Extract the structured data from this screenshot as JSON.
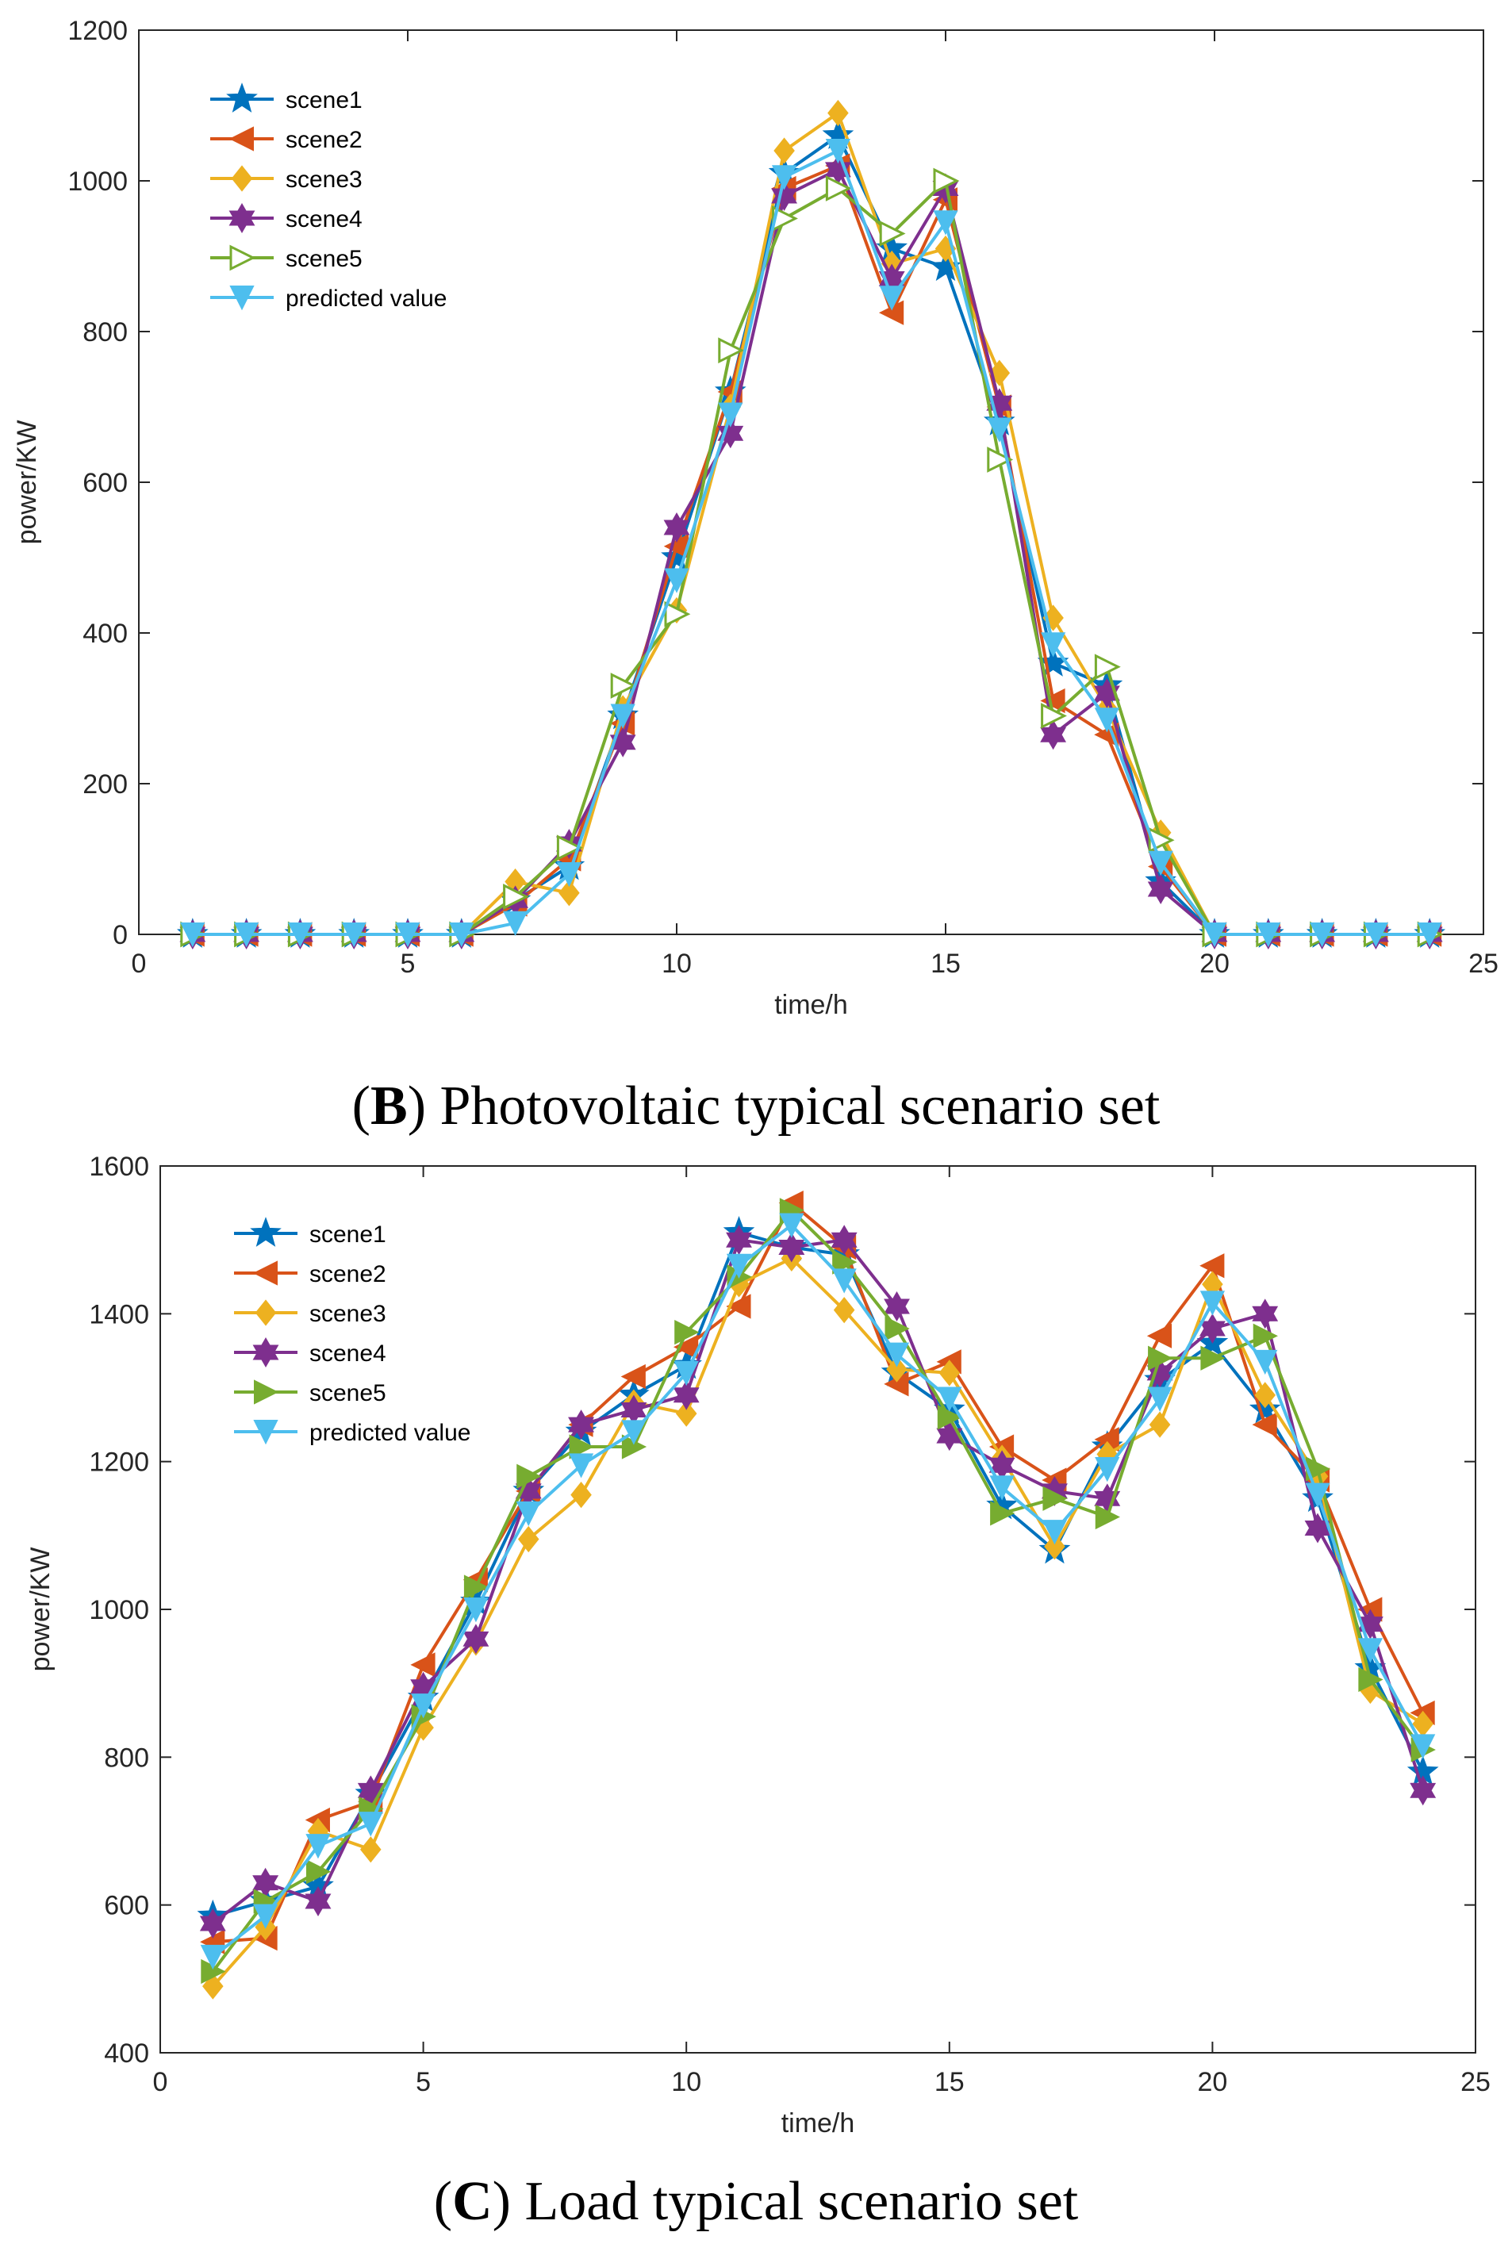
{
  "figure": {
    "panels": [
      {
        "letter": "B",
        "caption_text": ") Photovoltaic typical scenario set",
        "open_paren": "("
      },
      {
        "letter": "C",
        "caption_text": ") Load typical scenario set",
        "open_paren": "("
      }
    ]
  },
  "chart_data": [
    {
      "type": "line",
      "title": "",
      "xlabel": "time/h",
      "ylabel": "power/KW",
      "xlim": [
        0,
        25
      ],
      "ylim": [
        0,
        1200
      ],
      "xticks": [
        0,
        5,
        10,
        15,
        20,
        25
      ],
      "yticks": [
        0,
        200,
        400,
        600,
        800,
        1000,
        1200
      ],
      "x": [
        1,
        2,
        3,
        4,
        5,
        6,
        7,
        8,
        9,
        10,
        11,
        12,
        13,
        14,
        15,
        16,
        17,
        18,
        19,
        20,
        21,
        22,
        23,
        24
      ],
      "legend_position": "top-left",
      "series": [
        {
          "name": "scene1",
          "color": "#0072BD",
          "marker": "star",
          "values": [
            0,
            0,
            0,
            0,
            0,
            0,
            45,
            90,
            290,
            500,
            720,
            1010,
            1060,
            910,
            885,
            680,
            360,
            330,
            70,
            0,
            0,
            0,
            0,
            0
          ]
        },
        {
          "name": "scene2",
          "color": "#D95319",
          "marker": "triangle-left",
          "values": [
            0,
            0,
            0,
            0,
            0,
            0,
            40,
            100,
            280,
            515,
            720,
            990,
            1020,
            825,
            975,
            700,
            310,
            265,
            90,
            0,
            0,
            0,
            0,
            0
          ]
        },
        {
          "name": "scene3",
          "color": "#EDB120",
          "marker": "diamond",
          "values": [
            0,
            0,
            0,
            0,
            0,
            0,
            70,
            55,
            300,
            430,
            700,
            1040,
            1090,
            890,
            910,
            745,
            420,
            300,
            135,
            0,
            0,
            0,
            0,
            0
          ]
        },
        {
          "name": "scene4",
          "color": "#7E2F8E",
          "marker": "hexagram",
          "values": [
            0,
            0,
            0,
            0,
            0,
            0,
            45,
            120,
            255,
            540,
            665,
            980,
            1015,
            870,
            990,
            705,
            265,
            320,
            60,
            0,
            0,
            0,
            0,
            0
          ]
        },
        {
          "name": "scene5",
          "color": "#77AC30",
          "marker": "triangle-right-open",
          "values": [
            0,
            0,
            0,
            0,
            0,
            0,
            50,
            115,
            330,
            425,
            775,
            950,
            990,
            930,
            1000,
            630,
            290,
            355,
            125,
            0,
            0,
            0,
            0,
            0
          ]
        },
        {
          "name": "predicted value",
          "color": "#4DBEEE",
          "marker": "triangle-down",
          "values": [
            0,
            0,
            0,
            0,
            0,
            0,
            15,
            80,
            290,
            470,
            690,
            1005,
            1040,
            845,
            945,
            670,
            385,
            285,
            95,
            0,
            0,
            0,
            0,
            0
          ]
        }
      ]
    },
    {
      "type": "line",
      "title": "",
      "xlabel": "time/h",
      "ylabel": "power/KW",
      "xlim": [
        0,
        25
      ],
      "ylim": [
        400,
        1600
      ],
      "xticks": [
        0,
        5,
        10,
        15,
        20,
        25
      ],
      "yticks": [
        400,
        600,
        800,
        1000,
        1200,
        1400,
        1600
      ],
      "x": [
        1,
        2,
        3,
        4,
        5,
        6,
        7,
        8,
        9,
        10,
        11,
        12,
        13,
        14,
        15,
        16,
        17,
        18,
        19,
        20,
        21,
        22,
        23,
        24
      ],
      "legend_position": "top-left",
      "series": [
        {
          "name": "scene1",
          "color": "#0072BD",
          "marker": "star",
          "values": [
            585,
            605,
            625,
            750,
            880,
            1010,
            1160,
            1240,
            1290,
            1330,
            1510,
            1490,
            1480,
            1320,
            1270,
            1140,
            1080,
            1220,
            1310,
            1360,
            1270,
            1150,
            920,
            780
          ]
        },
        {
          "name": "scene2",
          "color": "#D95319",
          "marker": "triangle-left",
          "values": [
            550,
            555,
            715,
            740,
            925,
            1040,
            1160,
            1250,
            1315,
            1355,
            1410,
            1550,
            1490,
            1305,
            1335,
            1220,
            1175,
            1230,
            1370,
            1465,
            1250,
            1175,
            1000,
            860
          ]
        },
        {
          "name": "scene3",
          "color": "#EDB120",
          "marker": "diamond",
          "values": [
            490,
            570,
            700,
            675,
            840,
            955,
            1095,
            1155,
            1280,
            1265,
            1440,
            1475,
            1405,
            1325,
            1320,
            1205,
            1085,
            1210,
            1250,
            1440,
            1290,
            1180,
            890,
            845
          ]
        },
        {
          "name": "scene4",
          "color": "#7E2F8E",
          "marker": "hexagram",
          "values": [
            575,
            630,
            605,
            755,
            895,
            960,
            1160,
            1250,
            1270,
            1290,
            1500,
            1490,
            1500,
            1410,
            1235,
            1195,
            1160,
            1150,
            1320,
            1380,
            1400,
            1110,
            980,
            755
          ]
        },
        {
          "name": "scene5",
          "color": "#77AC30",
          "marker": "triangle-right",
          "values": [
            510,
            605,
            645,
            730,
            855,
            1030,
            1180,
            1220,
            1220,
            1375,
            1450,
            1540,
            1470,
            1380,
            1260,
            1130,
            1150,
            1125,
            1340,
            1340,
            1370,
            1190,
            905,
            810
          ]
        },
        {
          "name": "predicted value",
          "color": "#4DBEEE",
          "marker": "triangle-down",
          "values": [
            530,
            585,
            680,
            710,
            870,
            1000,
            1130,
            1195,
            1240,
            1320,
            1465,
            1520,
            1445,
            1345,
            1285,
            1165,
            1105,
            1190,
            1285,
            1415,
            1335,
            1155,
            945,
            815
          ]
        }
      ]
    }
  ]
}
